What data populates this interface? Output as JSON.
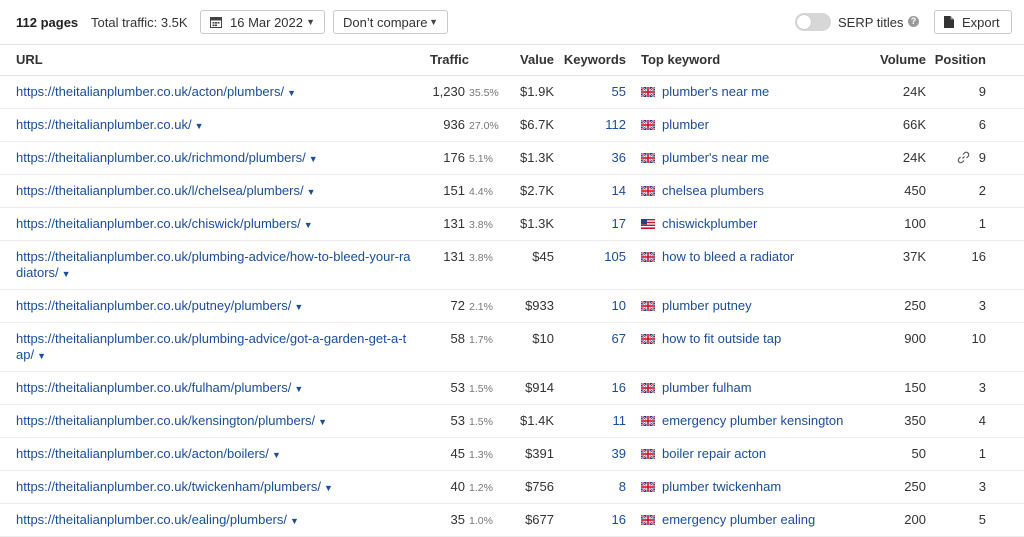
{
  "toolbar": {
    "pages_label": "112 pages",
    "traffic_label": "Total traffic: 3.5K",
    "date": "16 Mar 2022",
    "compare": "Don’t compare",
    "serp_titles": "SERP titles",
    "serp_titles_enabled": false,
    "export_label": "Export"
  },
  "table": {
    "headers": {
      "url": "URL",
      "traffic": "Traffic",
      "value": "Value",
      "keywords": "Keywords",
      "top_keyword": "Top keyword",
      "volume": "Volume",
      "position": "Position"
    },
    "rows": [
      {
        "url": "https://theitalianplumber.co.uk/acton/plumbers/",
        "traffic": "1,230",
        "traffic_pct": "35.5%",
        "value": "$1.9K",
        "keywords": "55",
        "flag": "uk",
        "top_keyword": "plumber's near me",
        "volume": "24K",
        "position": "9",
        "link_icon": false
      },
      {
        "url": "https://theitalianplumber.co.uk/",
        "traffic": "936",
        "traffic_pct": "27.0%",
        "value": "$6.7K",
        "keywords": "112",
        "flag": "uk",
        "top_keyword": "plumber",
        "volume": "66K",
        "position": "6",
        "link_icon": false
      },
      {
        "url": "https://theitalianplumber.co.uk/richmond/plumbers/",
        "traffic": "176",
        "traffic_pct": "5.1%",
        "value": "$1.3K",
        "keywords": "36",
        "flag": "uk",
        "top_keyword": "plumber's near me",
        "volume": "24K",
        "position": "9",
        "link_icon": true
      },
      {
        "url": "https://theitalianplumber.co.uk/l/chelsea/plumbers/",
        "traffic": "151",
        "traffic_pct": "4.4%",
        "value": "$2.7K",
        "keywords": "14",
        "flag": "uk",
        "top_keyword": "chelsea plumbers",
        "volume": "450",
        "position": "2",
        "link_icon": false
      },
      {
        "url": "https://theitalianplumber.co.uk/chiswick/plumbers/",
        "traffic": "131",
        "traffic_pct": "3.8%",
        "value": "$1.3K",
        "keywords": "17",
        "flag": "us",
        "top_keyword": "chiswickplumber",
        "volume": "100",
        "position": "1",
        "link_icon": false
      },
      {
        "url": "https://theitalianplumber.co.uk/plumbing-advice/how-to-bleed-your-radiators/",
        "traffic": "131",
        "traffic_pct": "3.8%",
        "value": "$45",
        "keywords": "105",
        "flag": "uk",
        "top_keyword": "how to bleed a radiator",
        "volume": "37K",
        "position": "16",
        "link_icon": false
      },
      {
        "url": "https://theitalianplumber.co.uk/putney/plumbers/",
        "traffic": "72",
        "traffic_pct": "2.1%",
        "value": "$933",
        "keywords": "10",
        "flag": "uk",
        "top_keyword": "plumber putney",
        "volume": "250",
        "position": "3",
        "link_icon": false
      },
      {
        "url": "https://theitalianplumber.co.uk/plumbing-advice/got-a-garden-get-a-tap/",
        "traffic": "58",
        "traffic_pct": "1.7%",
        "value": "$10",
        "keywords": "67",
        "flag": "uk",
        "top_keyword": "how to fit outside tap",
        "volume": "900",
        "position": "10",
        "link_icon": false
      },
      {
        "url": "https://theitalianplumber.co.uk/fulham/plumbers/",
        "traffic": "53",
        "traffic_pct": "1.5%",
        "value": "$914",
        "keywords": "16",
        "flag": "uk",
        "top_keyword": "plumber fulham",
        "volume": "150",
        "position": "3",
        "link_icon": false
      },
      {
        "url": "https://theitalianplumber.co.uk/kensington/plumbers/",
        "traffic": "53",
        "traffic_pct": "1.5%",
        "value": "$1.4K",
        "keywords": "11",
        "flag": "uk",
        "top_keyword": "emergency plumber kensington",
        "volume": "350",
        "position": "4",
        "link_icon": false
      },
      {
        "url": "https://theitalianplumber.co.uk/acton/boilers/",
        "traffic": "45",
        "traffic_pct": "1.3%",
        "value": "$391",
        "keywords": "39",
        "flag": "uk",
        "top_keyword": "boiler repair acton",
        "volume": "50",
        "position": "1",
        "link_icon": false
      },
      {
        "url": "https://theitalianplumber.co.uk/twickenham/plumbers/",
        "traffic": "40",
        "traffic_pct": "1.2%",
        "value": "$756",
        "keywords": "8",
        "flag": "uk",
        "top_keyword": "plumber twickenham",
        "volume": "250",
        "position": "3",
        "link_icon": false
      },
      {
        "url": "https://theitalianplumber.co.uk/ealing/plumbers/",
        "traffic": "35",
        "traffic_pct": "1.0%",
        "value": "$677",
        "keywords": "16",
        "flag": "uk",
        "top_keyword": "emergency plumber ealing",
        "volume": "200",
        "position": "5",
        "link_icon": false
      }
    ]
  },
  "colors": {
    "link": "#1a4d9c",
    "border": "#e3e3e3",
    "toggle_off": "#d7d7d7"
  }
}
